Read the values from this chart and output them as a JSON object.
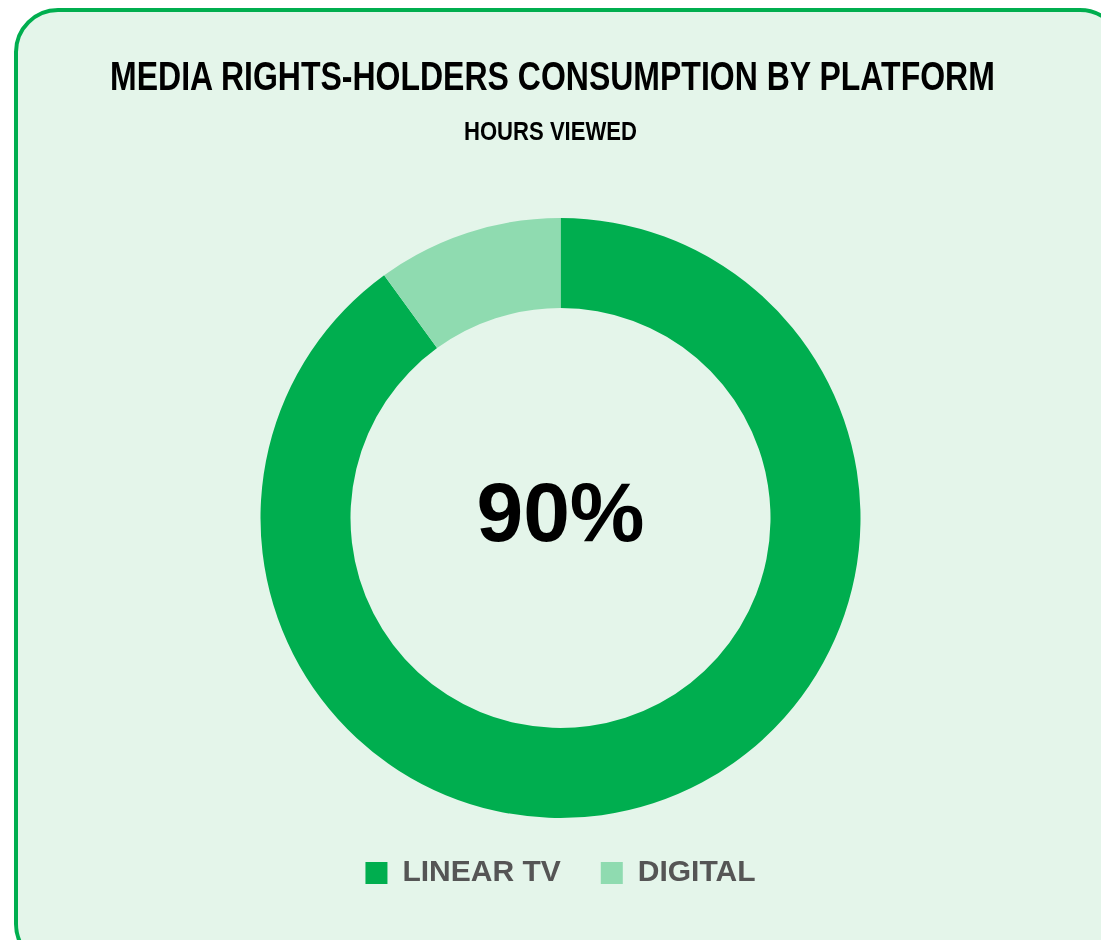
{
  "chart_data": {
    "type": "donut",
    "title": "MEDIA RIGHTS-HOLDERS CONSUMPTION BY PLATFORM",
    "subtitle": "HOURS VIEWED",
    "categories": [
      "LINEAR TV",
      "DIGITAL"
    ],
    "values": [
      90,
      10
    ],
    "value_labels": [
      "90%",
      null
    ],
    "colors": [
      "#00ae4f",
      "#8fdbb0"
    ],
    "legend": "bottom"
  }
}
